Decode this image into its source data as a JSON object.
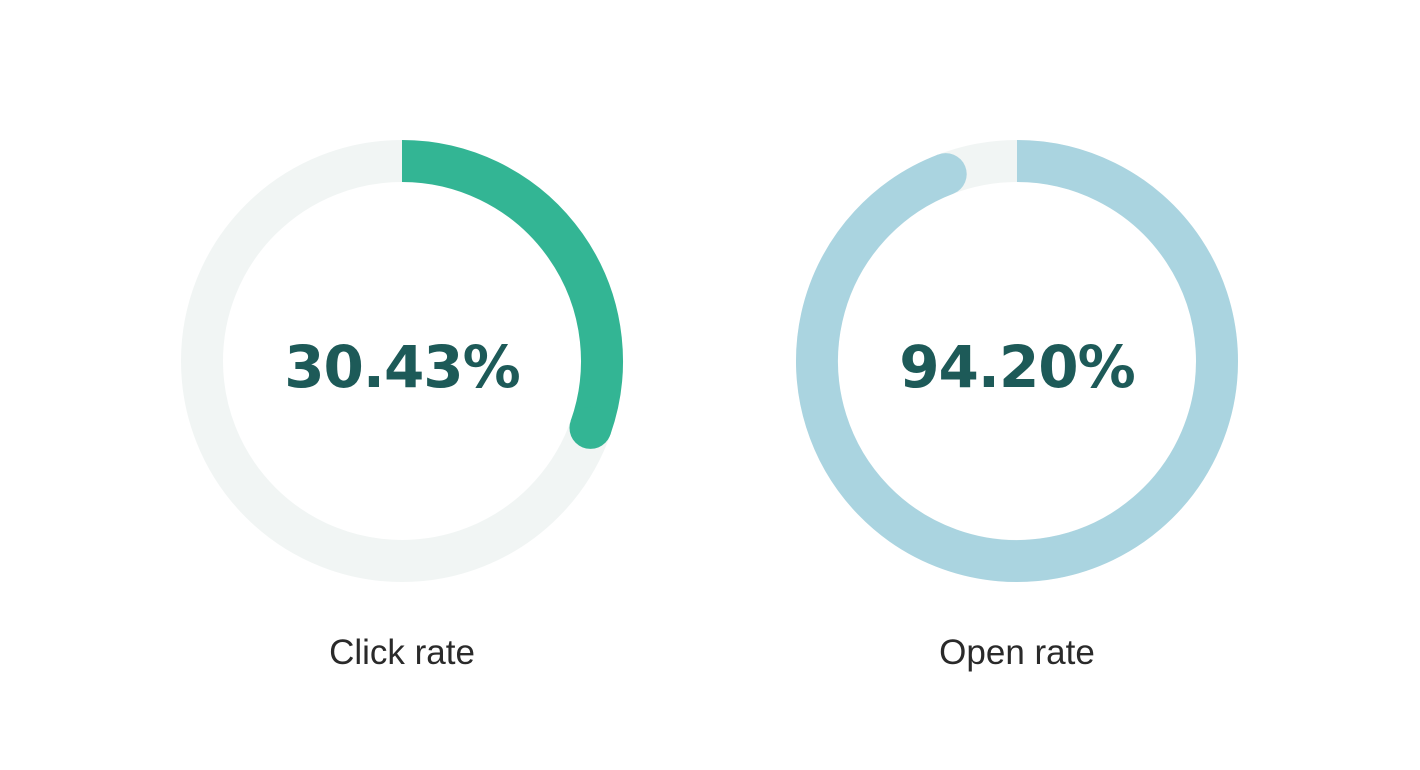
{
  "colors": {
    "track": "#f1f5f4",
    "value_text": "#1d5a58",
    "label_text": "#2a2a2a"
  },
  "chart_data": [
    {
      "type": "pie",
      "subtype": "donut-gauge",
      "label": "Click rate",
      "value": 30.43,
      "value_label": "30.43%",
      "max": 100,
      "color": "#33b594"
    },
    {
      "type": "pie",
      "subtype": "donut-gauge",
      "label": "Open rate",
      "value": 94.2,
      "value_label": "94.20%",
      "max": 100,
      "color": "#aad4e0"
    }
  ]
}
